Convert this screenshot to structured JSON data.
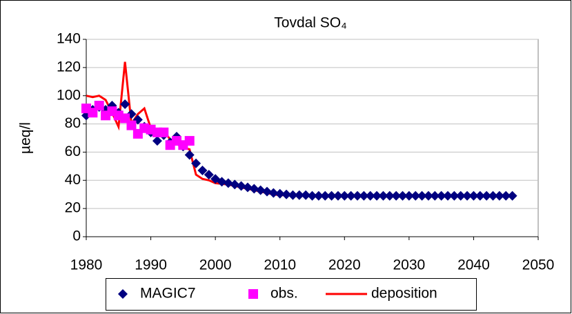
{
  "chart_data": {
    "type": "line",
    "title": "Tovdal SO₄",
    "y_label": "µeq/l",
    "xlim": [
      1980,
      2050
    ],
    "xticks": [
      1980,
      1990,
      2000,
      2010,
      2020,
      2030,
      2040,
      2050
    ],
    "ylim": [
      0,
      140
    ],
    "yticks": [
      0,
      20,
      40,
      60,
      80,
      100,
      120,
      140
    ],
    "grid": true,
    "legend": "bottom",
    "series": [
      {
        "name": "MAGIC7",
        "color": "#000080",
        "marker": "diamond",
        "x": [
          1980,
          1981,
          1982,
          1983,
          1984,
          1985,
          1986,
          1987,
          1988,
          1989,
          1990,
          1991,
          1992,
          1993,
          1994,
          1995,
          1996,
          1997,
          1998,
          1999,
          2000,
          2001,
          2002,
          2003,
          2004,
          2005,
          2006,
          2007,
          2008,
          2009,
          2010,
          2011,
          2012,
          2013,
          2014,
          2015,
          2016,
          2017,
          2018,
          2019,
          2020,
          2021,
          2022,
          2023,
          2024,
          2025,
          2026,
          2027,
          2028,
          2029,
          2030,
          2031,
          2032,
          2033,
          2034,
          2035,
          2036,
          2037,
          2038,
          2039,
          2040,
          2041,
          2042,
          2043,
          2044,
          2045,
          2046
        ],
        "values": [
          86,
          90,
          92,
          90,
          93,
          88,
          94,
          87,
          83,
          78,
          74,
          68,
          72,
          67,
          71,
          64,
          58,
          52,
          47,
          44,
          41,
          39,
          38,
          37,
          36,
          35,
          34,
          33,
          32,
          31,
          30.5,
          30,
          29.5,
          29.5,
          29.5,
          29,
          29,
          29,
          29,
          29,
          29,
          29,
          29,
          29,
          29,
          29,
          29,
          29,
          29,
          29,
          29,
          29,
          29,
          29,
          29,
          29,
          29,
          29,
          29,
          29,
          29,
          29,
          29,
          29,
          29,
          29,
          29
        ]
      },
      {
        "name": "obs.",
        "color": "#ff00ff",
        "marker": "square",
        "x": [
          1980,
          1981,
          1982,
          1983,
          1984,
          1985,
          1986,
          1987,
          1988,
          1989,
          1990,
          1991,
          1992,
          1993,
          1994,
          1995,
          1996
        ],
        "values": [
          91,
          88,
          93,
          86,
          89,
          86,
          84,
          79,
          73,
          77,
          76,
          74,
          74,
          65,
          68,
          65,
          68
        ]
      },
      {
        "name": "deposition",
        "color": "#ff0000",
        "marker": "line",
        "x": [
          1980,
          1981,
          1982,
          1983,
          1984,
          1985,
          1986,
          1987,
          1988,
          1989,
          1990,
          1991,
          1992,
          1993,
          1994,
          1995,
          1996,
          1997,
          1998,
          1999,
          2000,
          2001,
          2002,
          2003,
          2004,
          2005,
          2006,
          2007,
          2008,
          2009,
          2010,
          2011,
          2012,
          2013,
          2014,
          2015,
          2016,
          2017,
          2018,
          2019,
          2020,
          2021,
          2022,
          2023,
          2024,
          2025,
          2026,
          2027,
          2028,
          2029,
          2030,
          2031,
          2032,
          2033,
          2034,
          2035,
          2036,
          2037,
          2038,
          2039,
          2040,
          2041,
          2042,
          2043,
          2044,
          2045,
          2046
        ],
        "values": [
          100,
          99,
          100,
          97,
          88,
          78,
          124,
          80,
          87,
          91,
          77,
          74,
          75,
          69,
          66,
          63,
          62,
          44,
          41,
          40,
          38,
          37.5,
          37,
          36,
          35,
          34,
          33,
          32,
          31,
          30,
          29.5,
          29.5,
          29,
          29,
          29,
          29,
          29,
          29,
          29,
          29,
          29,
          29,
          29,
          29,
          29,
          29,
          29,
          29,
          29,
          29,
          29,
          29,
          29,
          29,
          29,
          29,
          29,
          29,
          29,
          29,
          29,
          29,
          29,
          29,
          29,
          29,
          29
        ]
      }
    ]
  }
}
